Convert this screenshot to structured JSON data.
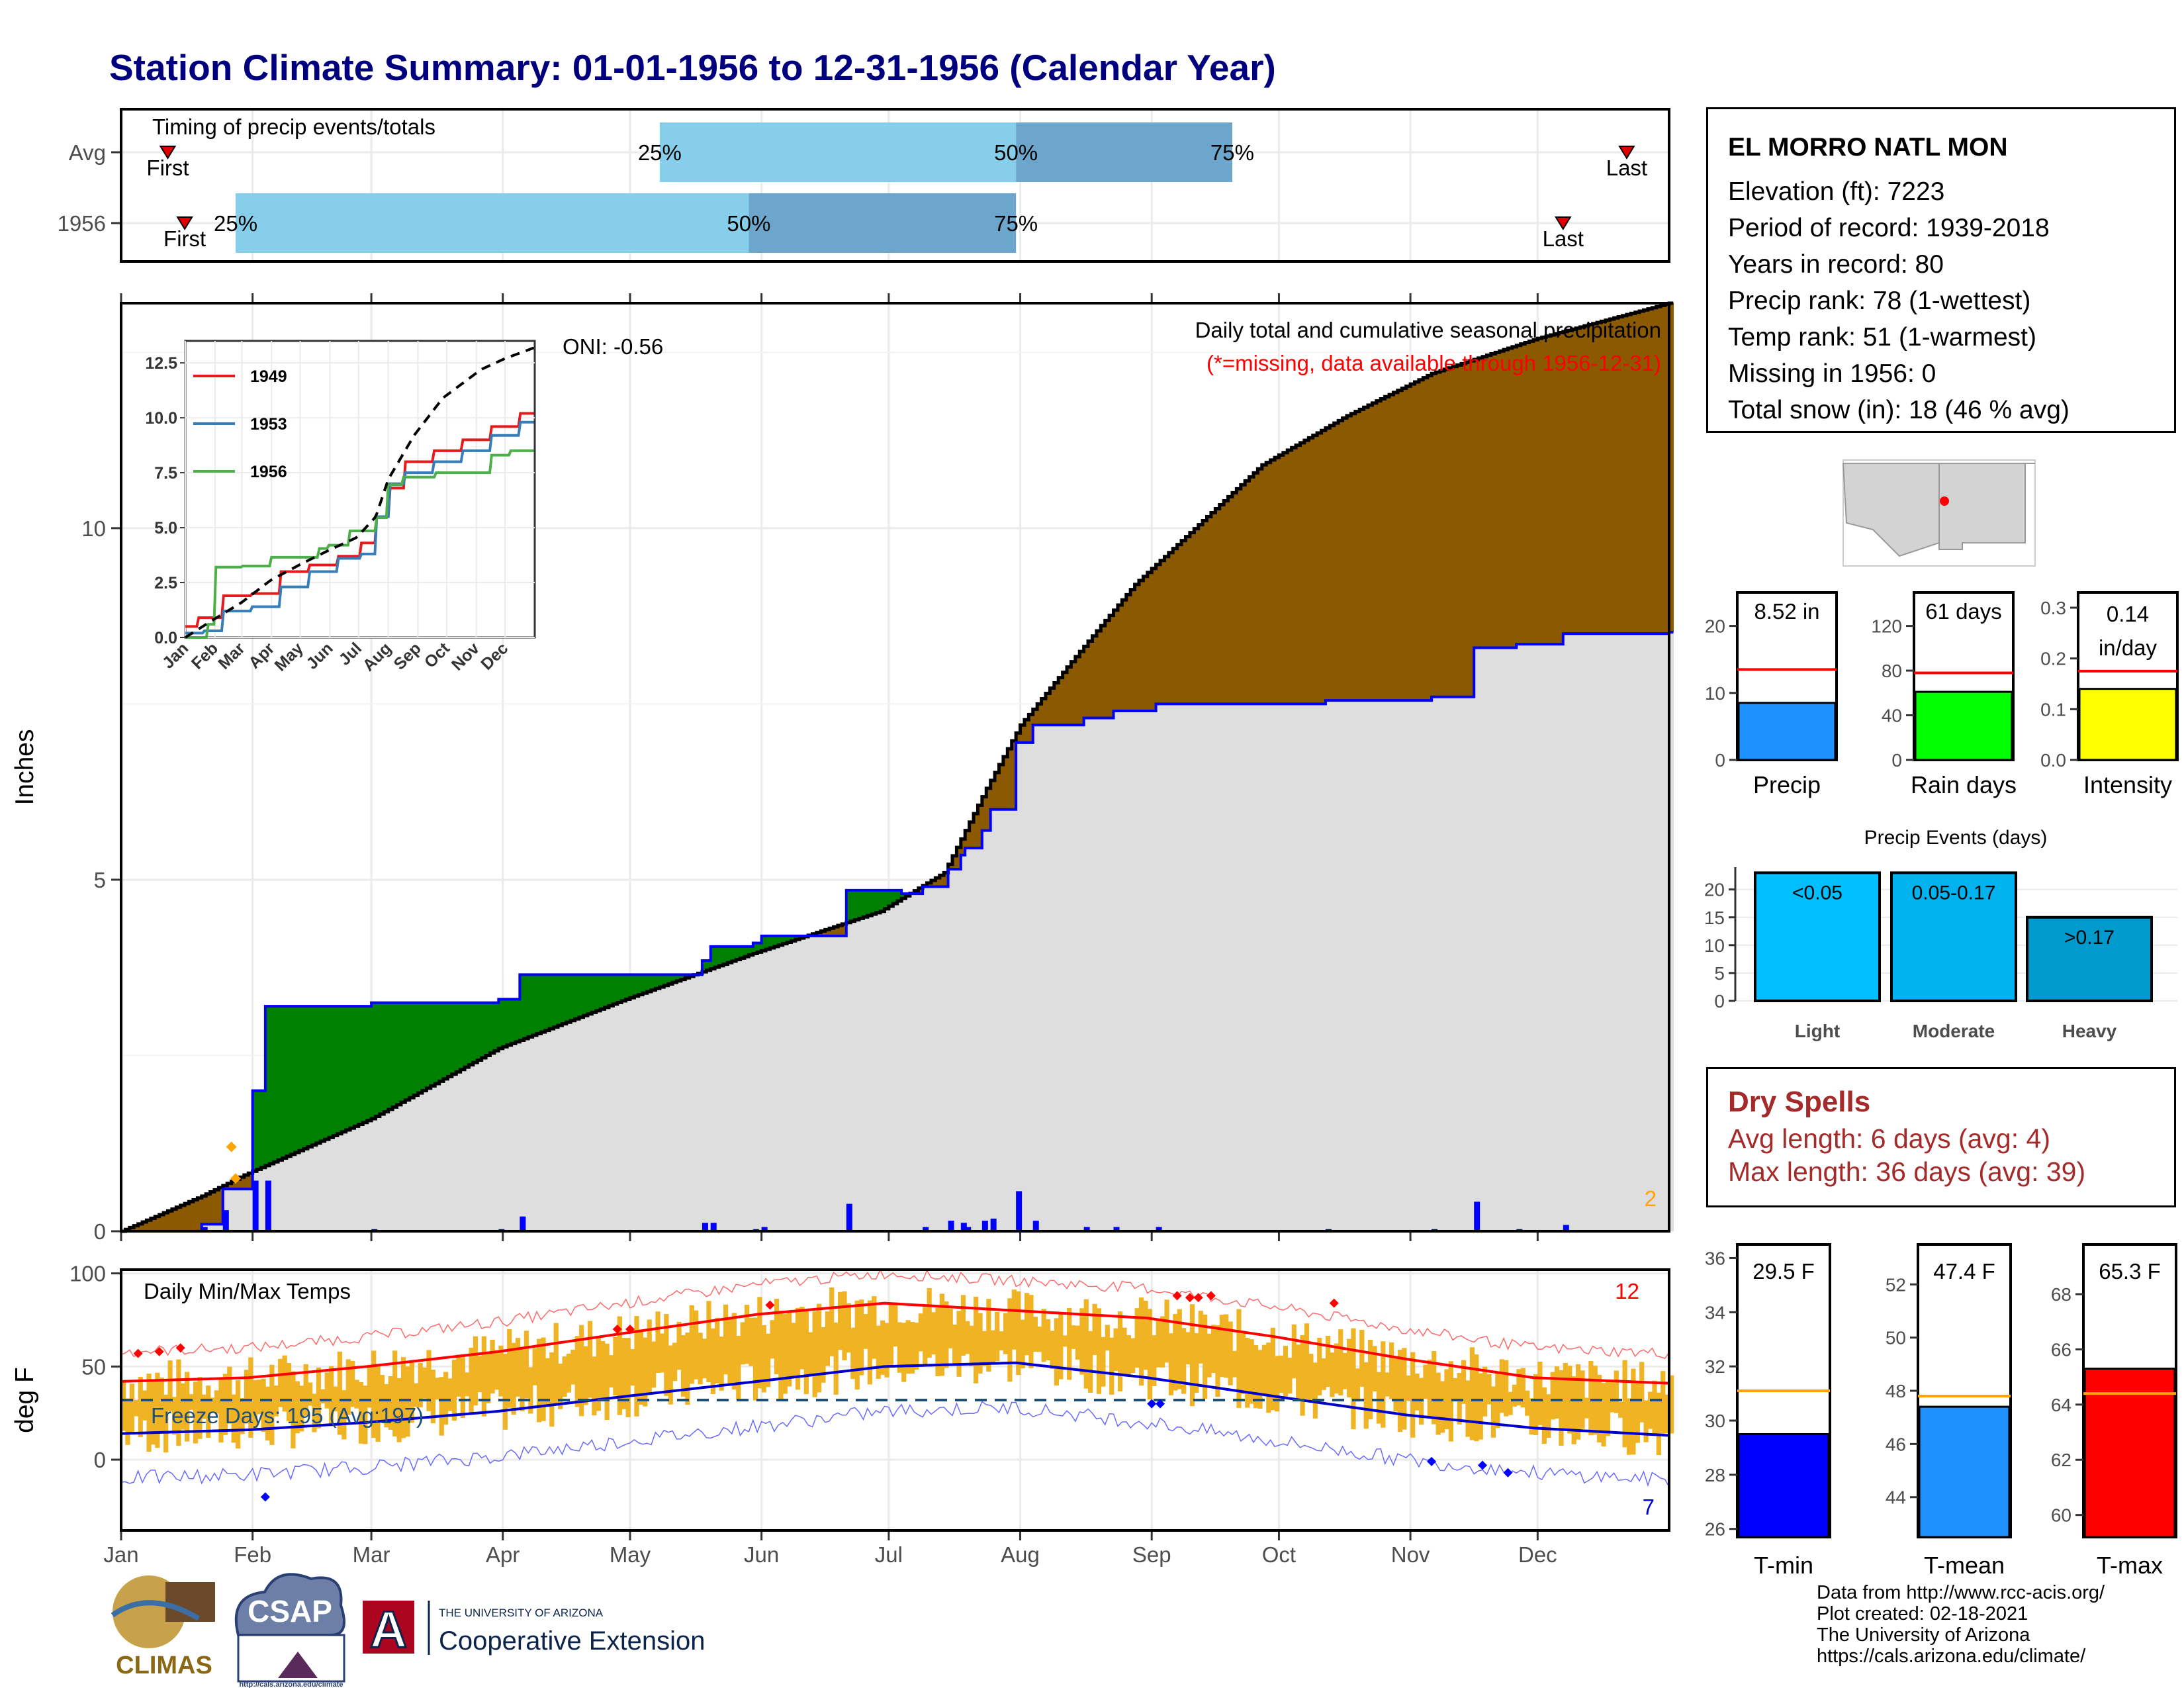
{
  "title": "Station Climate Summary: 01-01-1956 to 12-31-1956 (Calendar Year)",
  "timing_panel": {
    "label": "Timing of precip events/totals",
    "rows": [
      {
        "name": "Avg",
        "first_day": 12,
        "q25_day": 128,
        "q50_day": 212,
        "q75_day": 263,
        "last_day": 356
      },
      {
        "name": "1956",
        "first_day": 16,
        "q25_day": 28,
        "q50_day": 149,
        "q75_day": 212,
        "last_day": 341
      }
    ],
    "pct_labels": [
      "25%",
      "50%",
      "75%"
    ],
    "first_label": "First",
    "last_label": "Last",
    "colors": {
      "q25_q50": "#87ceeb",
      "q50_q75": "#6ca6cd",
      "marker": "#e00000"
    }
  },
  "main_plot": {
    "ylabel": "Inches",
    "title_line1": "Daily total and cumulative seasonal precipitation",
    "title_line2": "(*=missing, data available through 1956-12-31)",
    "oni": "ONI: -0.56",
    "corner_count": "2",
    "yticks": [
      "0",
      "5",
      "10"
    ],
    "months": [
      "Jan",
      "Feb",
      "Mar",
      "Apr",
      "May",
      "Jun",
      "Jul",
      "Aug",
      "Sep",
      "Oct",
      "Nov",
      "Dec"
    ],
    "colors": {
      "above": "#008000",
      "below": "#8b5a00",
      "base": "#dedede",
      "observed": "#0000ff",
      "avg": "#000000"
    }
  },
  "inset": {
    "yticks": [
      "0.0",
      "2.5",
      "5.0",
      "7.5",
      "10.0",
      "12.5"
    ],
    "months": [
      "Jan",
      "Feb",
      "Mar",
      "Apr",
      "May",
      "Jun",
      "Jul",
      "Aug",
      "Sep",
      "Oct",
      "Nov",
      "Dec"
    ],
    "legend": [
      {
        "label": "1949",
        "color": "#e41a1c"
      },
      {
        "label": "1953",
        "color": "#377eb8"
      },
      {
        "label": "1956",
        "color": "#4daf4a"
      }
    ]
  },
  "temp_plot": {
    "ylabel": "deg F",
    "title": "Daily Min/Max Temps",
    "freeze_label": "Freeze Days: 195 (Avg:197)",
    "count_max": "12",
    "count_min": "7",
    "yticks": [
      "0",
      "50",
      "100"
    ],
    "months": [
      "Jan",
      "Feb",
      "Mar",
      "Apr",
      "May",
      "Jun",
      "Jul",
      "Aug",
      "Sep",
      "Oct",
      "Nov",
      "Dec"
    ],
    "colors": {
      "range": "#f0b323",
      "avg_max": "#ff0000",
      "avg_min": "#0000cd",
      "freeze": "#1f4e79"
    }
  },
  "station": {
    "name": "EL MORRO NATL MON",
    "elevation": "Elevation (ft): 7223",
    "period": "Period of record: 1939-2018",
    "years": "Years in record: 80",
    "precip_rank": "Precip rank: 78 (1-wettest)",
    "temp_rank": "Temp rank: 51 (1-warmest)",
    "missing": "Missing in 1956: 0",
    "snow": "Total snow (in): 18 (46 % avg)"
  },
  "summary_bars": [
    {
      "label": "Precip",
      "value_text": "8.52 in",
      "value": 8.52,
      "avg": 13.5,
      "ymax": 25,
      "yticks": [
        "0",
        "10",
        "20"
      ],
      "color": "#1e90ff"
    },
    {
      "label": "Rain days",
      "value_text": "61 days",
      "value": 61,
      "avg": 78,
      "ymax": 150,
      "yticks": [
        "0",
        "40",
        "80",
        "120"
      ],
      "color": "#00ff00"
    },
    {
      "label": "Intensity",
      "value_text_1": "0.14",
      "value_text_2": "in/day",
      "value": 0.14,
      "avg": 0.175,
      "ymax": 0.33,
      "yticks": [
        "0.0",
        "0.1",
        "0.2",
        "0.3"
      ],
      "color": "#ffff00"
    }
  ],
  "events": {
    "title": "Precip Events (days)",
    "yticks": [
      "0",
      "5",
      "10",
      "15",
      "20"
    ],
    "bars": [
      {
        "label": "Light",
        "range": "<0.05",
        "value": 23,
        "color": "#00bfff"
      },
      {
        "label": "Moderate",
        "range": "0.05-0.17",
        "value": 23,
        "color": "#00b2ee"
      },
      {
        "label": "Heavy",
        "range": ">0.17",
        "value": 15,
        "color": "#009acd"
      }
    ]
  },
  "dry_spells": {
    "title": "Dry Spells",
    "avg": "Avg length: 6 days (avg: 4)",
    "max": "Max length: 36 days (avg: 39)"
  },
  "temp_bars": [
    {
      "label": "T-min",
      "value_text": "29.5 F",
      "value": 29.5,
      "avg": 31.1,
      "ymin": 25.7,
      "ymax": 36.5,
      "yticks": [
        "26",
        "28",
        "30",
        "32",
        "34",
        "36"
      ],
      "color": "#0000ff"
    },
    {
      "label": "T-mean",
      "value_text": "47.4 F",
      "value": 47.4,
      "avg": 47.8,
      "ymin": 42.5,
      "ymax": 53.5,
      "yticks": [
        "44",
        "46",
        "48",
        "50",
        "52"
      ],
      "color": "#1e90ff"
    },
    {
      "label": "T-max",
      "value_text": "65.3 F",
      "value": 65.3,
      "avg": 64.4,
      "ymin": 59.2,
      "ymax": 69.8,
      "yticks": [
        "60",
        "62",
        "64",
        "66",
        "68"
      ],
      "color": "#ff0000"
    }
  ],
  "credits": {
    "line1": "Data from http://www.rcc-acis.org/",
    "line2": "Plot created: 02-18-2021",
    "line3": "The University of Arizona",
    "line4": "https://cals.arizona.edu/climate/"
  },
  "logos": {
    "climas": "CLIMAS",
    "csap": "CSAP",
    "csap_url": "http://cals.arizona.edu/climate",
    "ua_small": "THE UNIVERSITY OF ARIZONA",
    "ua_big": "Cooperative Extension",
    "ua_letter": "A"
  },
  "chart_data": [
    {
      "type": "area",
      "title": "Daily total and cumulative seasonal precipitation",
      "ylabel": "Inches",
      "ylim": [
        0,
        13.2
      ],
      "series": [
        {
          "name": "observed",
          "x": [
            1,
            15,
            20,
            25,
            28,
            32,
            35,
            60,
            90,
            95,
            138,
            140,
            150,
            152,
            172,
            178,
            182,
            185,
            190,
            196,
            199,
            200,
            204,
            206,
            212,
            216,
            222,
            228,
            235,
            245,
            255,
            262,
            268,
            285,
            310,
            320,
            330,
            341,
            366
          ],
          "y": [
            0,
            0,
            0.1,
            0.6,
            0.6,
            2.0,
            3.2,
            3.25,
            3.3,
            3.65,
            3.85,
            4.05,
            4.1,
            4.2,
            4.85,
            4.85,
            4.85,
            4.8,
            4.9,
            5.15,
            5.35,
            5.45,
            5.7,
            6.0,
            6.95,
            7.2,
            7.2,
            7.3,
            7.4,
            7.5,
            7.5,
            7.5,
            7.5,
            7.55,
            7.6,
            8.3,
            8.35,
            8.5,
            8.52
          ]
        },
        {
          "name": "avg",
          "x": [
            1,
            20,
            30,
            60,
            90,
            120,
            150,
            180,
            195,
            205,
            213,
            225,
            240,
            255,
            270,
            290,
            310,
            335,
            366
          ],
          "y": [
            0,
            0.5,
            0.8,
            1.6,
            2.6,
            3.3,
            3.95,
            4.55,
            5.1,
            6.3,
            7.2,
            8.1,
            9.2,
            10.05,
            10.9,
            11.6,
            12.2,
            12.7,
            13.2
          ]
        }
      ]
    },
    {
      "type": "line",
      "ylim": [
        0,
        13.5
      ],
      "series": [
        {
          "name": "1949",
          "x": [
            1,
            15,
            40,
            70,
            100,
            130,
            160,
            185,
            200,
            215,
            230,
            260,
            290,
            320,
            350,
            366
          ],
          "y": [
            0.5,
            0.9,
            1.9,
            2.0,
            3.0,
            3.3,
            3.7,
            4.3,
            5.5,
            6.8,
            8.0,
            8.5,
            9.0,
            9.6,
            10.2,
            10.5
          ]
        },
        {
          "name": "1953",
          "x": [
            1,
            20,
            40,
            70,
            100,
            130,
            160,
            185,
            200,
            215,
            230,
            260,
            290,
            320,
            350,
            366
          ],
          "y": [
            0.2,
            0.3,
            1.2,
            1.4,
            2.3,
            3.0,
            3.6,
            3.8,
            5.5,
            7.0,
            7.5,
            8.0,
            8.5,
            9.2,
            9.8,
            10.0
          ]
        },
        {
          "name": "1956",
          "x": [
            1,
            15,
            25,
            32,
            60,
            90,
            140,
            150,
            172,
            200,
            212,
            228,
            262,
            320,
            341,
            366
          ],
          "y": [
            0,
            0,
            0.6,
            3.2,
            3.25,
            3.65,
            4.05,
            4.2,
            4.85,
            5.45,
            6.95,
            7.3,
            7.5,
            8.3,
            8.5,
            8.52
          ]
        },
        {
          "name": "avg",
          "x": [
            1,
            30,
            60,
            90,
            120,
            150,
            180,
            200,
            213,
            240,
            270,
            310,
            335,
            366
          ],
          "y": [
            0,
            0.8,
            1.6,
            2.6,
            3.3,
            3.95,
            4.55,
            5.5,
            7.2,
            9.2,
            10.9,
            12.2,
            12.7,
            13.2
          ]
        }
      ]
    },
    {
      "type": "line",
      "title": "Daily Min/Max Temps",
      "ylabel": "deg F",
      "ylim": [
        -38,
        102
      ],
      "series": [
        {
          "name": "avg max",
          "x": [
            1,
            31,
            59,
            90,
            120,
            151,
            181,
            212,
            243,
            273,
            304,
            334,
            366
          ],
          "y": [
            42,
            44,
            50,
            58,
            68,
            78,
            84,
            80,
            76,
            66,
            54,
            44,
            41
          ]
        },
        {
          "name": "avg min",
          "x": [
            1,
            31,
            59,
            90,
            120,
            151,
            181,
            212,
            243,
            273,
            304,
            334,
            366
          ],
          "y": [
            14,
            16,
            20,
            26,
            34,
            42,
            50,
            52,
            44,
            34,
            24,
            17,
            13
          ]
        },
        {
          "name": "freeze line",
          "x": [
            1,
            366
          ],
          "y": [
            32,
            32
          ]
        }
      ]
    }
  ]
}
